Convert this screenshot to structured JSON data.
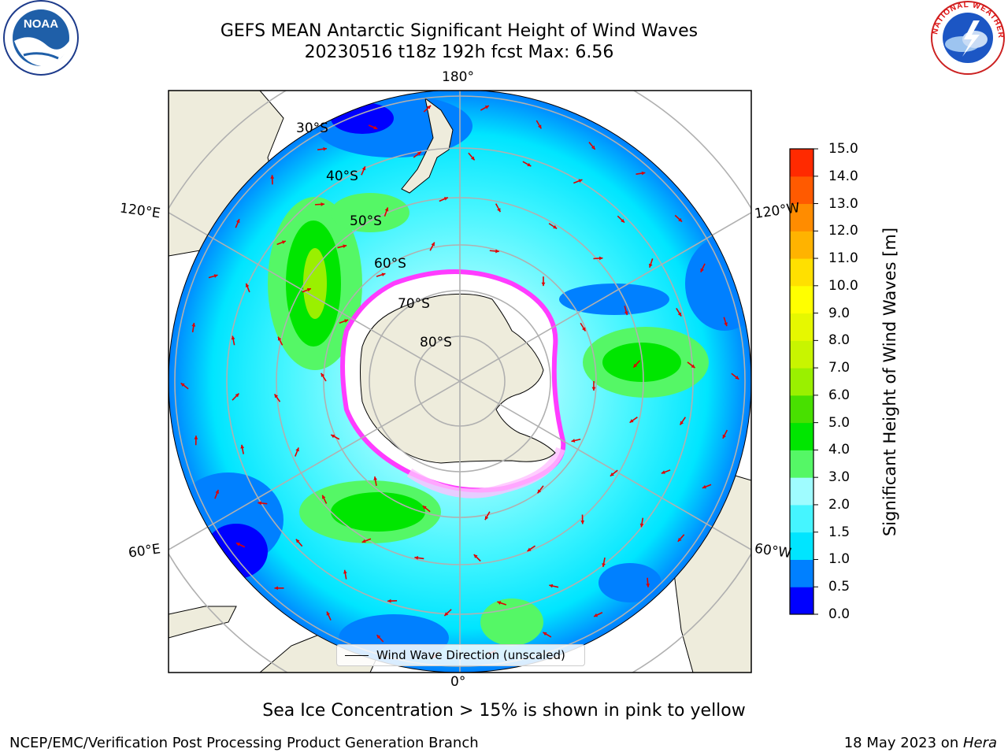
{
  "title_line1": "GEFS MEAN Antarctic Significant Height of Wind Waves",
  "title_line2": "20230516 t18z 192h fcst   Max: 6.56",
  "longitude_labels": {
    "top": "180°",
    "bottom": "0°",
    "upper_left": "120°E",
    "upper_right": "120°W",
    "lower_left": "60°E",
    "lower_right": "60°W"
  },
  "latitude_labels": [
    "30°S",
    "40°S",
    "50°S",
    "60°S",
    "70°S",
    "80°S"
  ],
  "legend_label": "Wind Wave Direction (unscaled)",
  "colorbar": {
    "label": "Significant Height of Wind Waves [m]",
    "ticks": [
      "15.0",
      "14.0",
      "13.0",
      "12.0",
      "11.0",
      "10.0",
      "9.0",
      "8.0",
      "7.0",
      "6.0",
      "5.0",
      "4.0",
      "3.0",
      "2.0",
      "1.5",
      "1.0",
      "0.5",
      "0.0"
    ],
    "colors": [
      "#0000ff",
      "#0080ff",
      "#00e5ff",
      "#45f5ff",
      "#9ffcff",
      "#55f766",
      "#00e600",
      "#48e000",
      "#9af000",
      "#c8f500",
      "#e6f800",
      "#ffff00",
      "#ffe000",
      "#ffb300",
      "#ff8c00",
      "#ff5a00",
      "#ff2a00",
      "#ff0000"
    ]
  },
  "note": "Sea Ice Concentration > 15% is shown in pink to yellow",
  "footer_left": "NCEP/EMC/Verification Post Processing Product Generation Branch",
  "footer_date": "18 May 2023 on ",
  "footer_host": "Hera",
  "logo_left": "NOAA",
  "logo_right": "NATIONAL WEATHER SERVICE"
}
